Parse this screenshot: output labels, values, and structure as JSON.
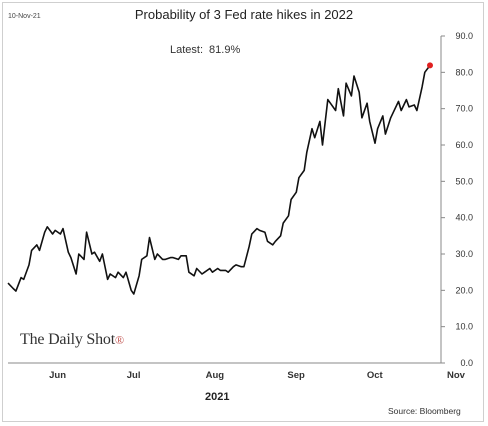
{
  "date_stamp": "10-Nov-21",
  "title": "Probability of 3 Fed rate hikes in 2022",
  "latest_label": "Latest:",
  "latest_value": "81.9%",
  "logo_text": "The Daily Shot",
  "logo_mark": "®",
  "year_label": "2021",
  "source": "Source: Bloomberg",
  "colors": {
    "line": "#111111",
    "marker": "#e02020",
    "axis": "#888888"
  },
  "chart_data": {
    "type": "line",
    "title": "Probability of 3 Fed rate hikes in 2022",
    "xlabel": "2021",
    "ylabel": "",
    "ylim": [
      0,
      90
    ],
    "yticks": [
      "0.0",
      "10.0",
      "20.0",
      "30.0",
      "40.0",
      "50.0",
      "60.0",
      "70.0",
      "80.0",
      "90.0"
    ],
    "xticks": [
      {
        "label": "Jun",
        "day": 9
      },
      {
        "label": "Jul",
        "day": 38
      },
      {
        "label": "Aug",
        "day": 69
      },
      {
        "label": "Sep",
        "day": 100
      },
      {
        "label": "Oct",
        "day": 130
      },
      {
        "label": "Nov",
        "day": 161
      }
    ],
    "grid": false,
    "series": [
      {
        "x": [
          0,
          2,
          3,
          5,
          6,
          8,
          9,
          11,
          12,
          14,
          15,
          17,
          18,
          20,
          21,
          23,
          24,
          26,
          27,
          29,
          30,
          32,
          33,
          35,
          36,
          38,
          39,
          41,
          42,
          44,
          45,
          47,
          48,
          50,
          51,
          53,
          54,
          56,
          57,
          59,
          60,
          62,
          63,
          65,
          66,
          68,
          69,
          71,
          72,
          74,
          75,
          77,
          78,
          80,
          81,
          83,
          84,
          86,
          87,
          89,
          90,
          92,
          93,
          95,
          96,
          98,
          99,
          101,
          102,
          104,
          105,
          107,
          108,
          110,
          111,
          113,
          114,
          116,
          117,
          119,
          120,
          122,
          123,
          125,
          126,
          128,
          129,
          131,
          132,
          134,
          135,
          137,
          138,
          140,
          141,
          143,
          144,
          146,
          147,
          149,
          150,
          152,
          153,
          155,
          156,
          158,
          159,
          161
        ],
        "y": [
          22.0,
          20.5,
          19.8,
          23.5,
          23.0,
          27.0,
          31.0,
          32.5,
          31.0,
          36.0,
          37.5,
          35.5,
          36.5,
          35.5,
          37.0,
          30.5,
          29.0,
          24.5,
          30.0,
          28.5,
          36.0,
          30.0,
          30.5,
          28.0,
          30.0,
          23.0,
          24.5,
          23.5,
          25.0,
          23.5,
          25.0,
          20.0,
          19.0,
          24.0,
          28.5,
          29.5,
          34.5,
          28.5,
          30.0,
          28.5,
          28.5,
          29.0,
          29.0,
          28.5,
          29.5,
          29.5,
          25.0,
          24.0,
          26.0,
          24.5,
          25.0,
          26.0,
          25.0,
          26.0,
          25.5,
          25.5,
          25.0,
          26.5,
          27.0,
          26.5,
          26.5,
          32.0,
          35.5,
          37.0,
          36.5,
          36.0,
          33.5,
          32.5,
          33.5,
          35.0,
          38.5,
          40.5,
          45.0,
          47.0,
          51.0,
          53.0,
          58.0,
          64.5,
          62.0,
          66.5,
          60.0,
          72.5,
          71.5,
          69.5,
          75.5,
          68.0,
          77.0,
          73.5,
          79.0,
          74.5,
          67.5,
          71.5,
          66.5,
          60.5,
          64.5,
          68.0,
          63.0,
          67.5,
          69.0,
          72.0,
          69.5,
          72.5,
          70.5,
          71.0,
          69.5,
          76.0,
          80.0,
          81.9
        ]
      }
    ]
  }
}
